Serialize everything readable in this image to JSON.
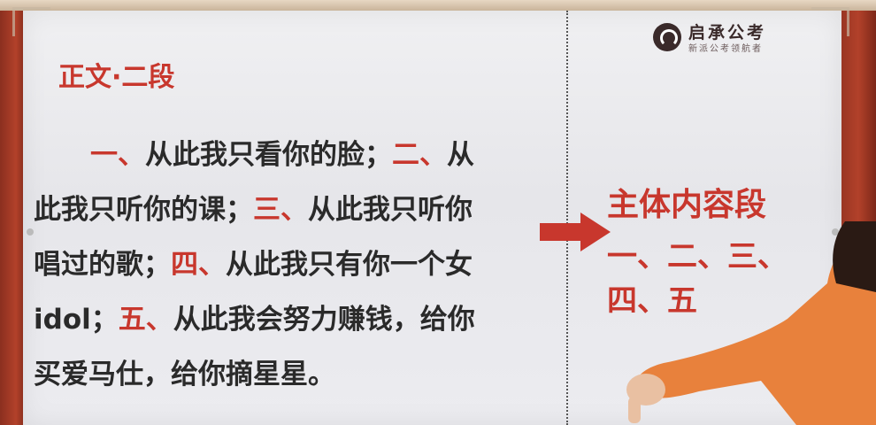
{
  "logo": {
    "name": "启承公考",
    "tagline": "新派公考领航者"
  },
  "slide": {
    "section_title": "正文·二段",
    "paragraph_lines": [
      {
        "parts": [
          {
            "t": "一、",
            "hl": true
          },
          {
            "t": "从此我只看你的脸；",
            "hl": false
          },
          {
            "t": "二、",
            "hl": true
          },
          {
            "t": "从",
            "hl": false
          }
        ]
      },
      {
        "parts": [
          {
            "t": "此我只听你的课；",
            "hl": false
          },
          {
            "t": "三、",
            "hl": true
          },
          {
            "t": "从此我只听你",
            "hl": false
          }
        ]
      },
      {
        "parts": [
          {
            "t": "唱过的歌；",
            "hl": false
          },
          {
            "t": "四、",
            "hl": true
          },
          {
            "t": "从此我只有你一个女",
            "hl": false
          }
        ]
      },
      {
        "parts": [
          {
            "t": "idol；",
            "hl": false
          },
          {
            "t": "五、",
            "hl": true
          },
          {
            "t": "从此我会努力赚钱，给你",
            "hl": false
          }
        ]
      },
      {
        "parts": [
          {
            "t": "买爱马仕，给你摘星星。",
            "hl": false
          }
        ]
      }
    ],
    "summary_title": "主体内容段",
    "summary_line1": "一、二、三、",
    "summary_line2": "四、五"
  },
  "colors": {
    "accent_red": "#c8372d",
    "text_dark": "#2a2a2a",
    "frame_red": "#8b2f1f"
  },
  "icons": {
    "arrow": "right-arrow-icon",
    "logo": "logo-mark-icon"
  }
}
